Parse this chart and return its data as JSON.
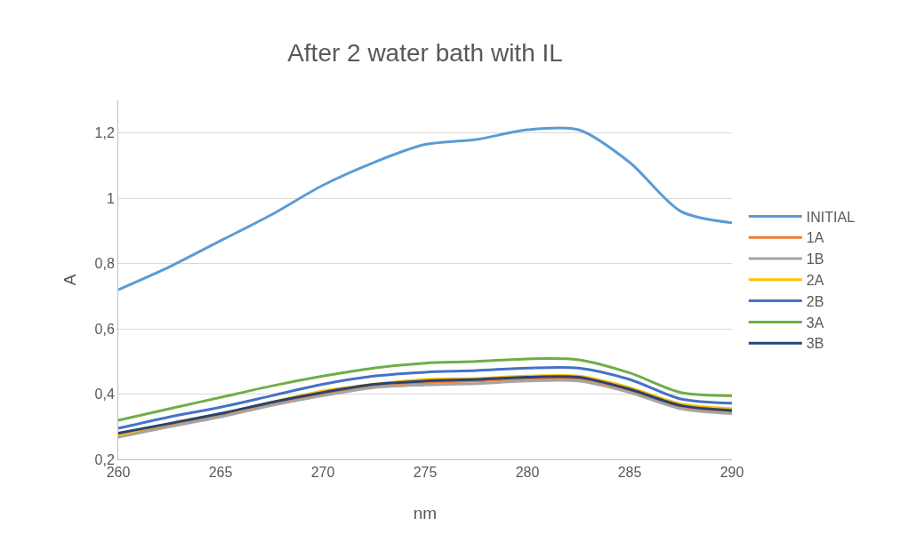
{
  "chart_data": {
    "type": "line",
    "title": "After 2 water bath with IL",
    "xlabel": "nm",
    "ylabel": "A",
    "x": [
      260,
      262.5,
      265,
      267.5,
      270,
      272.5,
      275,
      277.5,
      280,
      282.5,
      285,
      287.5,
      290
    ],
    "series": [
      {
        "name": "INITIAL",
        "color": "#5b9bd5",
        "values": [
          0.72,
          0.79,
          0.87,
          0.95,
          1.04,
          1.11,
          1.165,
          1.18,
          1.21,
          1.21,
          1.11,
          0.96,
          0.925
        ]
      },
      {
        "name": "1A",
        "color": "#ed7d31",
        "values": [
          0.272,
          0.305,
          0.335,
          0.37,
          0.4,
          0.425,
          0.435,
          0.44,
          0.447,
          0.447,
          0.41,
          0.36,
          0.345
        ]
      },
      {
        "name": "1B",
        "color": "#a5a5a5",
        "values": [
          0.268,
          0.3,
          0.33,
          0.365,
          0.395,
          0.42,
          0.428,
          0.432,
          0.44,
          0.44,
          0.405,
          0.355,
          0.34
        ]
      },
      {
        "name": "2A",
        "color": "#ffc000",
        "values": [
          0.275,
          0.31,
          0.34,
          0.375,
          0.41,
          0.43,
          0.445,
          0.448,
          0.455,
          0.455,
          0.42,
          0.37,
          0.355
        ]
      },
      {
        "name": "2B",
        "color": "#4472c4",
        "values": [
          0.295,
          0.33,
          0.36,
          0.395,
          0.43,
          0.455,
          0.467,
          0.472,
          0.48,
          0.48,
          0.445,
          0.385,
          0.372
        ]
      },
      {
        "name": "3A",
        "color": "#70ad47",
        "values": [
          0.32,
          0.355,
          0.39,
          0.425,
          0.455,
          0.48,
          0.495,
          0.5,
          0.508,
          0.505,
          0.465,
          0.405,
          0.395
        ]
      },
      {
        "name": "3B",
        "color": "#264478",
        "values": [
          0.28,
          0.31,
          0.34,
          0.375,
          0.405,
          0.43,
          0.44,
          0.445,
          0.452,
          0.452,
          0.415,
          0.365,
          0.35
        ]
      }
    ],
    "xlim": [
      260,
      290
    ],
    "xticks": [
      260,
      265,
      270,
      275,
      280,
      285,
      290
    ],
    "ylim": [
      0.2,
      1.3
    ],
    "yticks": [
      {
        "value": 0.2,
        "label": "0,2"
      },
      {
        "value": 0.4,
        "label": "0,4"
      },
      {
        "value": 0.6,
        "label": "0,6"
      },
      {
        "value": 0.8,
        "label": "0,8"
      },
      {
        "value": 1,
        "label": "1"
      },
      {
        "value": 1.2,
        "label": "1,2"
      }
    ],
    "grid": "y",
    "legend": "right",
    "marker": "none",
    "line_style": "solid"
  }
}
